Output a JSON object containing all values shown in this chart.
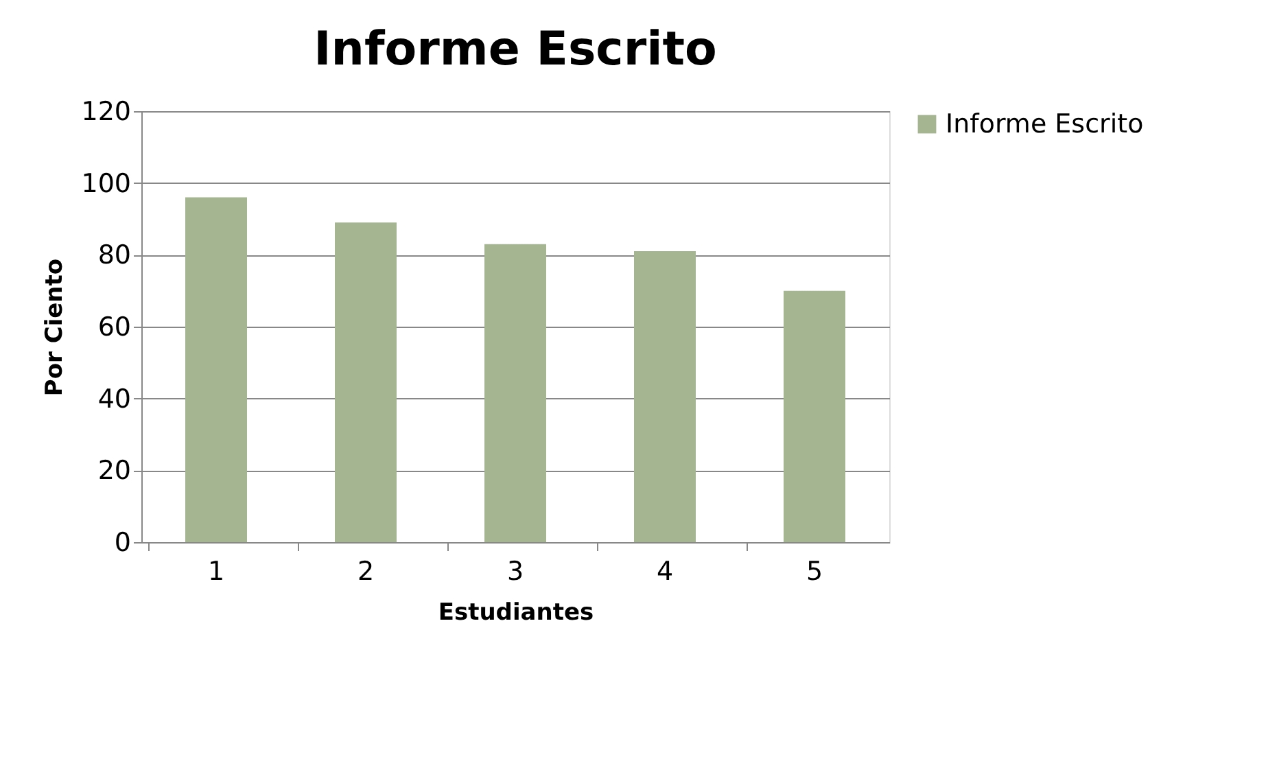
{
  "chart_data": {
    "type": "bar",
    "title": "Informe Escrito",
    "xlabel": "Estudiantes",
    "ylabel": "Por Ciento",
    "categories": [
      "1",
      "2",
      "3",
      "4",
      "5"
    ],
    "series": [
      {
        "name": "Informe Escrito",
        "color": "#a5b592",
        "values": [
          96,
          89,
          83,
          81,
          70
        ]
      }
    ],
    "ylim": [
      0,
      120
    ],
    "yticks": [
      0,
      20,
      40,
      60,
      80,
      100,
      120
    ],
    "grid": "y",
    "legend": "right"
  }
}
